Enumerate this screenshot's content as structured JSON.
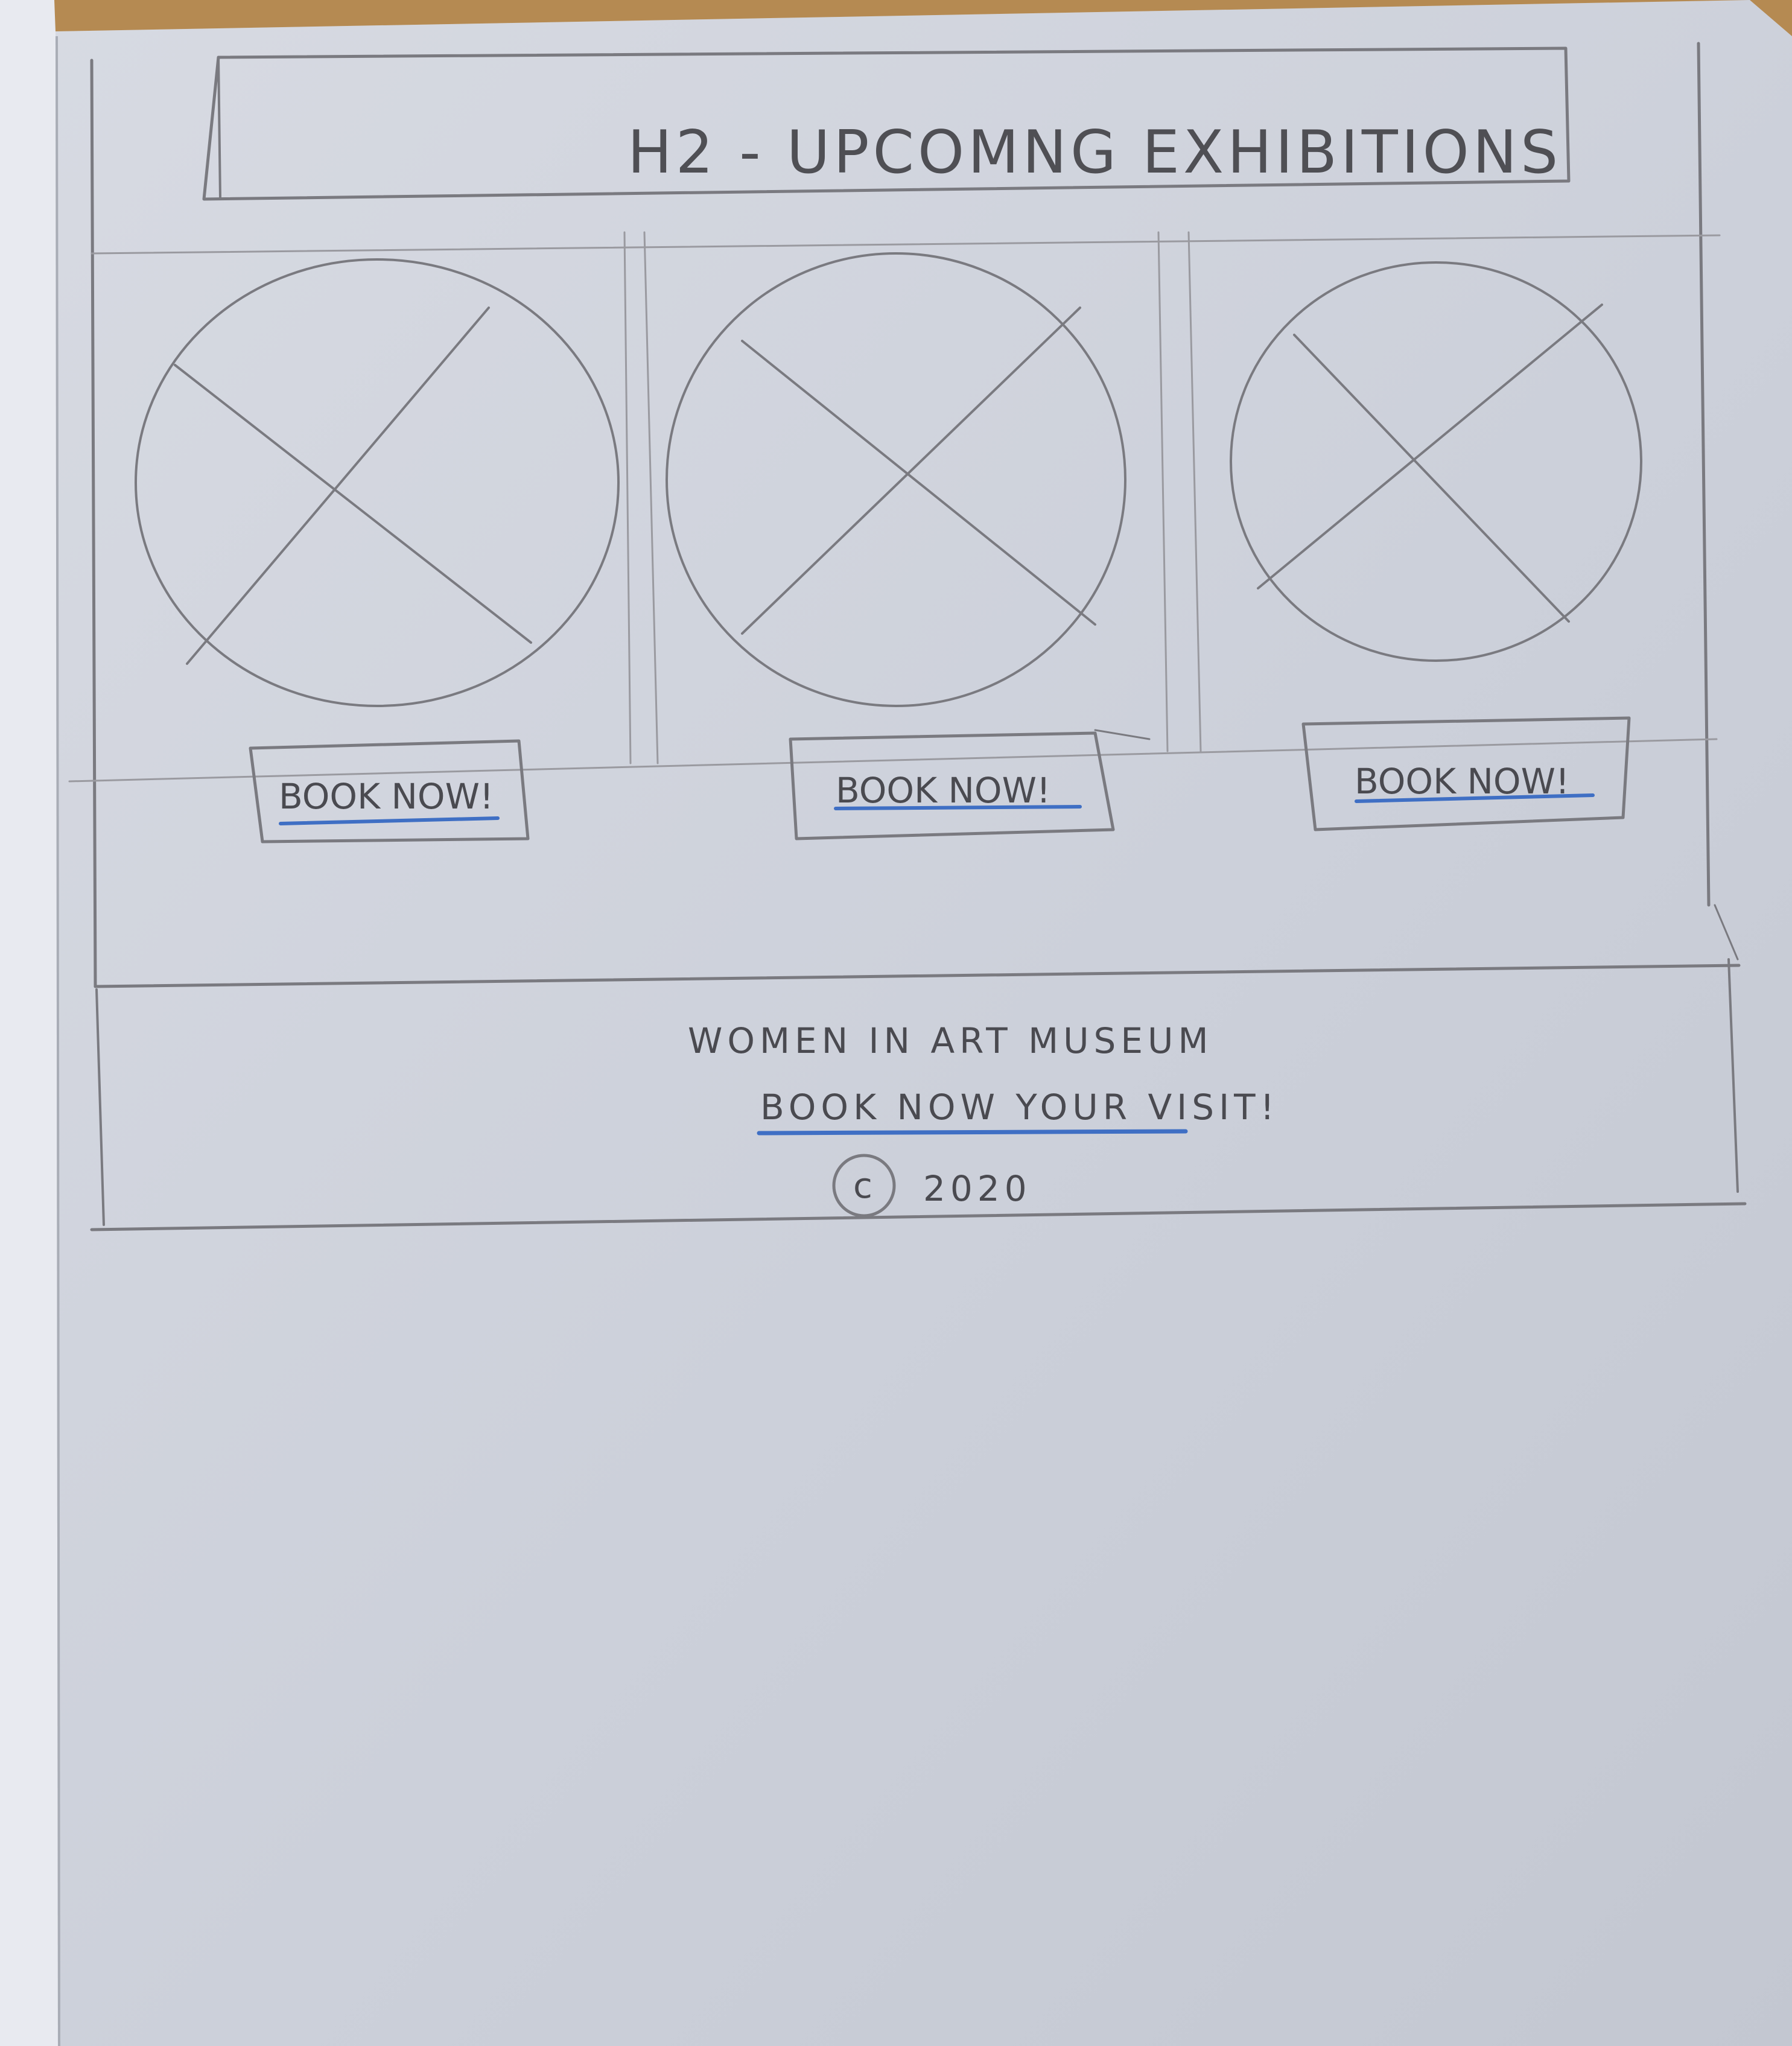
{
  "wireframe": {
    "heading": "H2 - UPCOMNG EXHIBITIONS",
    "cards": [
      {
        "button_label": "BOOK NOW!"
      },
      {
        "button_label": "BOOK NOW!"
      },
      {
        "button_label": "BOOK NOW!"
      }
    ],
    "footer": {
      "museum_name": "WOMEN IN ART MUSEUM",
      "link_text": "BOOK NOW YOUR VISIT!",
      "copyright_symbol": "c",
      "copyright_year": "2020"
    }
  },
  "colors": {
    "paper": "#cfd3dc",
    "pencil": "#7a7a80",
    "link_underline": "#3f6fc4",
    "table": "#b58a52"
  }
}
